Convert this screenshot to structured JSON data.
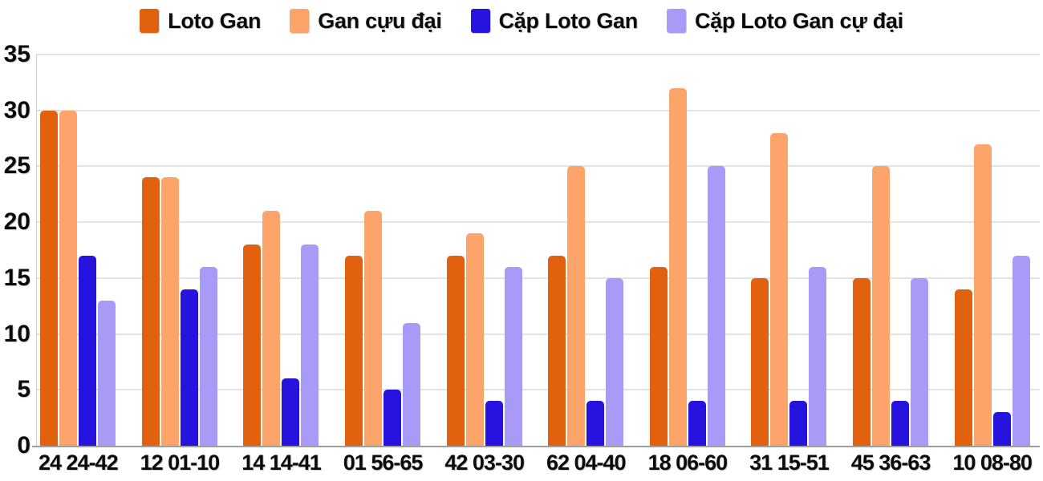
{
  "chart_data": {
    "type": "bar",
    "title": "",
    "xlabel": "",
    "ylabel": "",
    "categories": [
      "24 24-42",
      "12 01-10",
      "14 14-41",
      "01 56-65",
      "42 03-30",
      "62 04-40",
      "18 06-60",
      "31 15-51",
      "45 36-63",
      "10 08-80"
    ],
    "series": [
      {
        "name": "Loto Gan",
        "color": "#e2610f",
        "values": [
          30,
          24,
          18,
          17,
          17,
          17,
          16,
          15,
          15,
          14
        ]
      },
      {
        "name": "Gan cựu đại",
        "color": "#fca46a",
        "values": [
          30,
          24,
          21,
          21,
          19,
          25,
          32,
          28,
          25,
          27
        ]
      },
      {
        "name": "Cặp Loto Gan",
        "color": "#2613de",
        "values": [
          17,
          14,
          6,
          5,
          4,
          4,
          4,
          4,
          4,
          3
        ]
      },
      {
        "name": "Cặp Loto Gan cự đại",
        "color": "#a89bf7",
        "values": [
          13,
          16,
          18,
          11,
          16,
          15,
          25,
          16,
          15,
          17
        ]
      }
    ],
    "ylim": [
      0,
      35
    ],
    "yticks": [
      0,
      5,
      10,
      15,
      20,
      25,
      30,
      35
    ],
    "grid": "horizontal",
    "legend_position": "top-center",
    "bar_corner": "rounded-top"
  },
  "colors": {
    "background": "#ffffff",
    "gridline": "#e3e3e3",
    "zero_axis_line": "#9e9e9e",
    "vertical_axis_line": "#cccccc",
    "text": "#0b0b0b"
  }
}
